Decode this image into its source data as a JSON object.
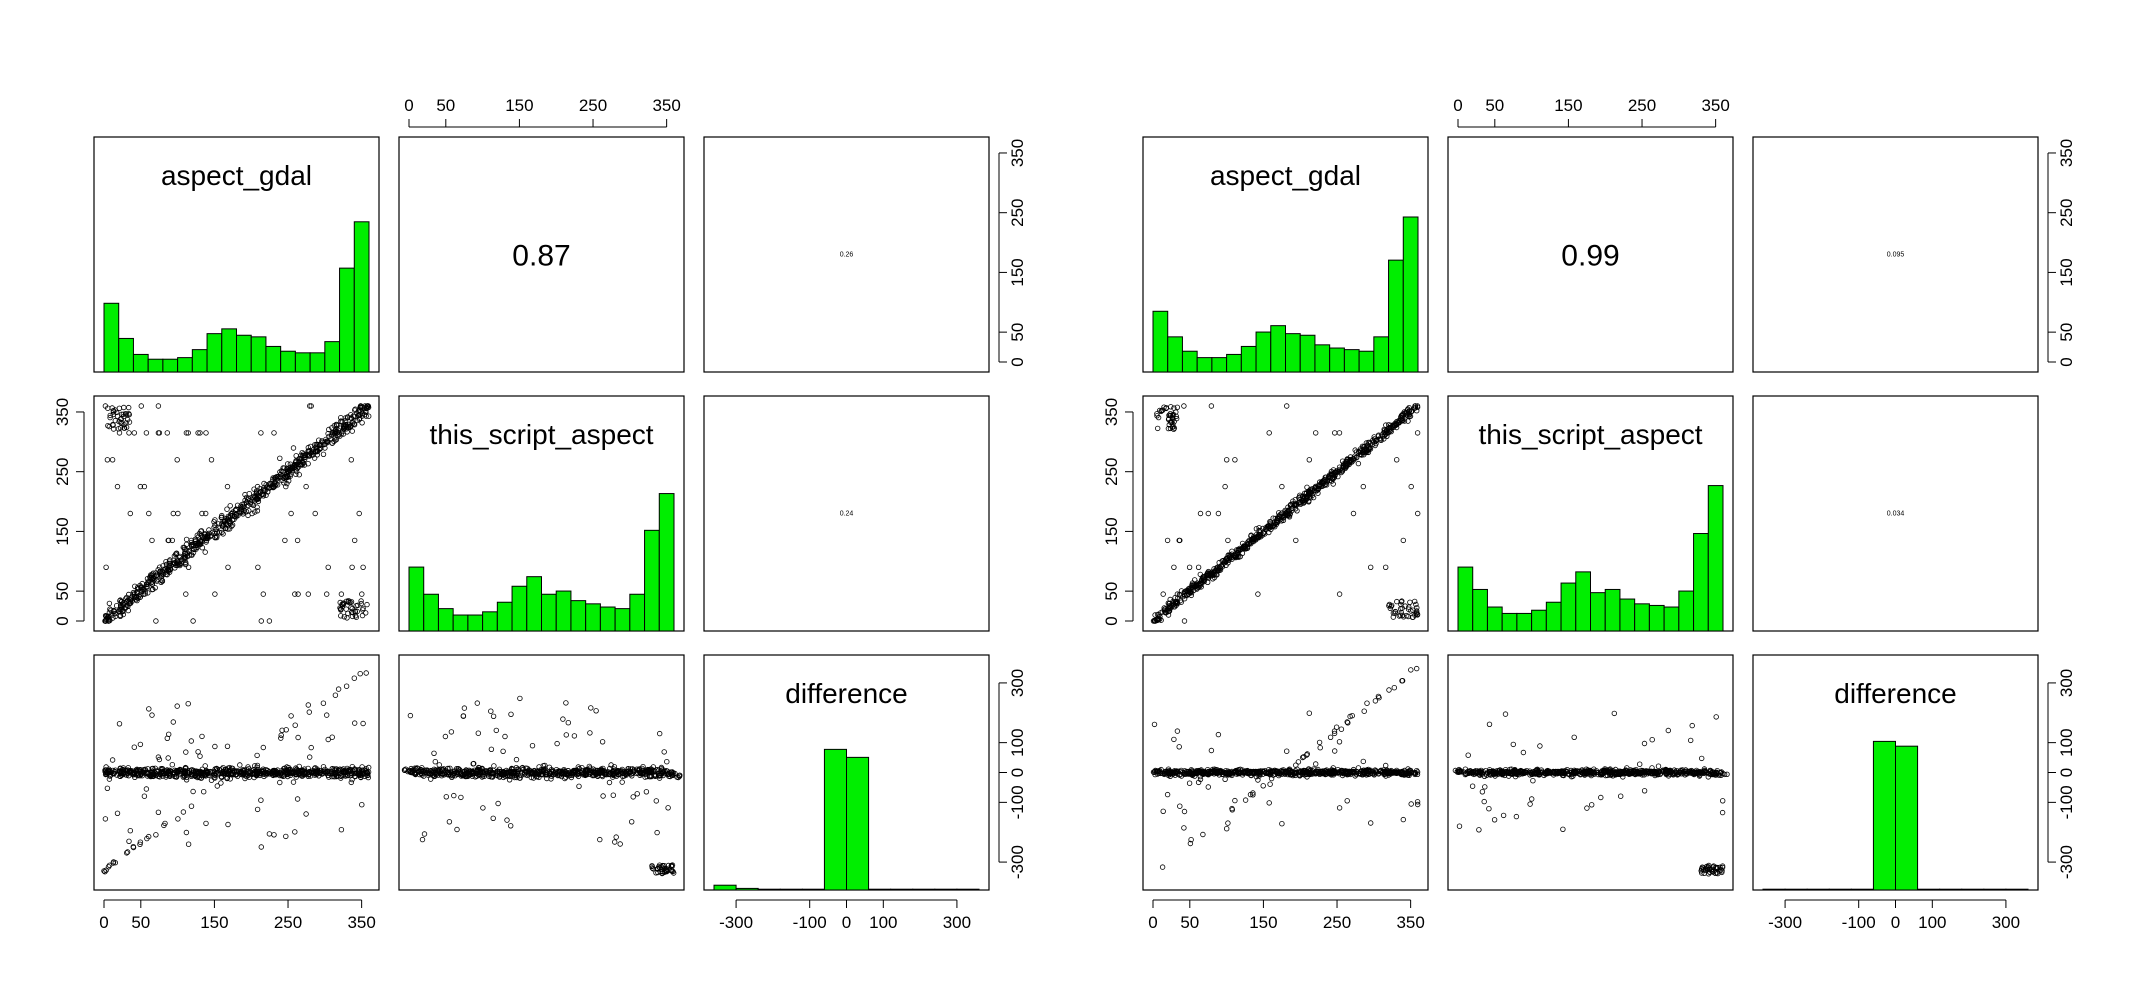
{
  "chart_data": [
    {
      "type": "pairs",
      "variables": [
        "aspect_gdal",
        "this_script_aspect",
        "difference"
      ],
      "correlations": [
        {
          "pair": [
            "aspect_gdal",
            "this_script_aspect"
          ],
          "value": "0.87"
        },
        {
          "pair": [
            "aspect_gdal",
            "difference"
          ],
          "value": "0.26"
        },
        {
          "pair": [
            "this_script_aspect",
            "difference"
          ],
          "value": "0.24"
        }
      ],
      "aspect_ticks": [
        "0",
        "50",
        "150",
        "250",
        "350"
      ],
      "difference_ticks": [
        "-300",
        "-100",
        "0",
        "100",
        "300"
      ],
      "aspect_range": [
        0,
        360
      ],
      "difference_range": [
        -360,
        360
      ],
      "histogram_fill": "#00ee00",
      "histograms": {
        "aspect_gdal": {
          "bins": [
            0,
            20,
            40,
            60,
            80,
            100,
            120,
            140,
            160,
            180,
            200,
            220,
            240,
            260,
            280,
            300,
            320,
            340,
            360
          ],
          "counts": [
            0.43,
            0.21,
            0.11,
            0.08,
            0.08,
            0.09,
            0.14,
            0.24,
            0.27,
            0.23,
            0.22,
            0.16,
            0.13,
            0.12,
            0.12,
            0.19,
            0.65,
            0.94
          ]
        },
        "this_script_aspect": {
          "bins": [
            0,
            20,
            40,
            60,
            80,
            100,
            120,
            140,
            160,
            180,
            200,
            220,
            240,
            260,
            280,
            300,
            320,
            340,
            360
          ],
          "counts": [
            0.4,
            0.23,
            0.14,
            0.1,
            0.1,
            0.12,
            0.18,
            0.28,
            0.34,
            0.23,
            0.25,
            0.19,
            0.17,
            0.15,
            0.14,
            0.23,
            0.63,
            0.86
          ]
        },
        "difference": {
          "bins": [
            -360,
            -300,
            -240,
            -180,
            -120,
            -60,
            0,
            60,
            120,
            180,
            240,
            300,
            360
          ],
          "counts": [
            0.03,
            0.01,
            0.005,
            0.005,
            0.005,
            0.88,
            0.83,
            0.005,
            0.005,
            0.005,
            0.005,
            0.005
          ]
        }
      }
    },
    {
      "type": "pairs",
      "variables": [
        "aspect_gdal",
        "this_script_aspect",
        "difference"
      ],
      "correlations": [
        {
          "pair": [
            "aspect_gdal",
            "this_script_aspect"
          ],
          "value": "0.99"
        },
        {
          "pair": [
            "aspect_gdal",
            "difference"
          ],
          "value": "0.095"
        },
        {
          "pair": [
            "this_script_aspect",
            "difference"
          ],
          "value": "0.034"
        }
      ],
      "aspect_ticks": [
        "0",
        "50",
        "150",
        "250",
        "350"
      ],
      "difference_ticks": [
        "-300",
        "-100",
        "0",
        "100",
        "300"
      ],
      "aspect_range": [
        0,
        360
      ],
      "difference_range": [
        -360,
        360
      ],
      "histogram_fill": "#00ee00",
      "histograms": {
        "aspect_gdal": {
          "bins": [
            0,
            20,
            40,
            60,
            80,
            100,
            120,
            140,
            160,
            180,
            200,
            220,
            240,
            260,
            280,
            300,
            320,
            340,
            360
          ],
          "counts": [
            0.38,
            0.22,
            0.13,
            0.09,
            0.09,
            0.11,
            0.16,
            0.25,
            0.29,
            0.24,
            0.23,
            0.17,
            0.15,
            0.14,
            0.13,
            0.22,
            0.7,
            0.97
          ]
        },
        "this_script_aspect": {
          "bins": [
            0,
            20,
            40,
            60,
            80,
            100,
            120,
            140,
            160,
            180,
            200,
            220,
            240,
            260,
            280,
            300,
            320,
            340,
            360
          ],
          "counts": [
            0.4,
            0.26,
            0.15,
            0.11,
            0.11,
            0.13,
            0.18,
            0.3,
            0.37,
            0.24,
            0.26,
            0.2,
            0.17,
            0.16,
            0.15,
            0.25,
            0.61,
            0.91
          ]
        },
        "difference": {
          "bins": [
            -360,
            -300,
            -240,
            -180,
            -120,
            -60,
            0,
            60,
            120,
            180,
            240,
            300,
            360
          ],
          "counts": [
            0.005,
            0.005,
            0.005,
            0.005,
            0.005,
            0.93,
            0.9,
            0.005,
            0.005,
            0.005,
            0.005,
            0.005
          ]
        }
      }
    }
  ]
}
